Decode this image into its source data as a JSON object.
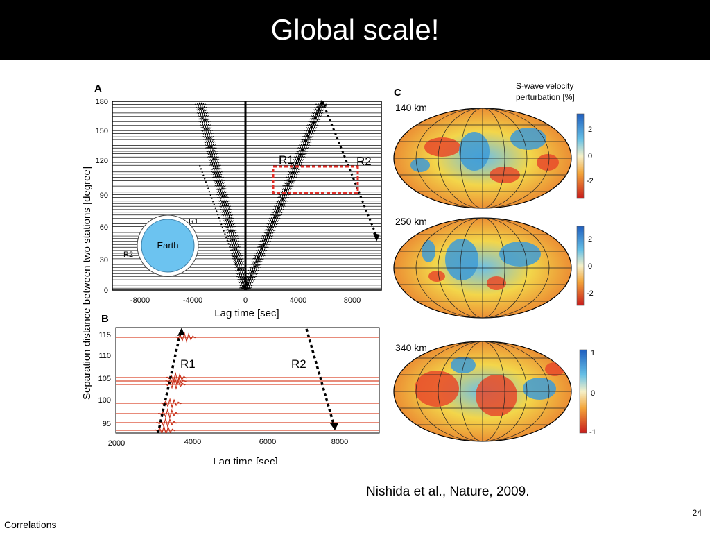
{
  "slide": {
    "title": "Global scale!",
    "citation": "Nishida et al., Nature, 2009.",
    "page_number": "24",
    "footer": "Correlations"
  },
  "figure": {
    "panel_a": {
      "label": "A",
      "ylabel": "Separation distance between two stations [degree]",
      "xlabel": "Lag time [sec]",
      "y_ticks": [
        "180",
        "150",
        "120",
        "90",
        "60",
        "30",
        "0"
      ],
      "x_ticks": [
        "-8000",
        "-4000",
        "0",
        "4000",
        "8000"
      ],
      "r1": "R1",
      "r2": "R2",
      "inset": {
        "earth": "Earth",
        "r1": "R1",
        "r2": "R2"
      }
    },
    "panel_b": {
      "label": "B",
      "xlabel": "Lag time [sec]",
      "y_ticks": [
        "115",
        "110",
        "105",
        "100",
        "95"
      ],
      "x_ticks": [
        "2000",
        "4000",
        "6000",
        "8000"
      ],
      "r1": "R1",
      "r2": "R2"
    },
    "panel_c": {
      "label": "C",
      "legend_line1": "S-wave velocity",
      "legend_line2": "perturbation [%]",
      "maps": [
        {
          "depth": "140 km",
          "ticks": [
            "2",
            "0",
            "-2"
          ]
        },
        {
          "depth": "250 km",
          "ticks": [
            "2",
            "0",
            "-2"
          ]
        },
        {
          "depth": "340 km",
          "ticks": [
            "1",
            "0",
            "-1"
          ]
        }
      ]
    },
    "colors": {
      "frame": "#000000",
      "highlight": "#e0302a",
      "earth": "#6cc3f0",
      "trace_b": "#d9462b",
      "map_warm": "#e84a2a",
      "map_mid": "#f3d64a",
      "map_cool": "#3e9bd6"
    }
  }
}
